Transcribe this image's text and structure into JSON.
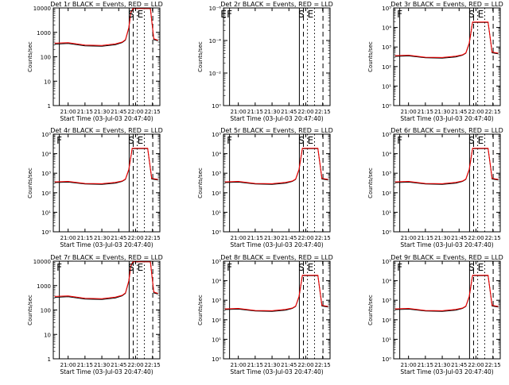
{
  "figure": {
    "x_tick_labels": [
      "21:00",
      "21:15",
      "21:30",
      "21:45",
      "22:00",
      "22:15"
    ],
    "xlabel": "Start Time (03-Jul-03 20:47:40)",
    "ylabel": "Counts/sec",
    "series_colors": {
      "events": "#000000",
      "lld": "#ff0000"
    },
    "markers": [
      "F",
      "S",
      "E"
    ]
  },
  "chart_data": [
    {
      "type": "line",
      "title": "Det 1r BLACK = Events, RED = LLD",
      "xlabel": "Start Time (03-Jul-03 20:47:40)",
      "ylabel": "Counts/sec",
      "x_ticks": [
        "21:00",
        "21:15",
        "21:30",
        "21:45",
        "22:00",
        "22:15"
      ],
      "y_ticks": [
        "1",
        "10",
        "100",
        "1000",
        "10000"
      ],
      "ylim": [
        1,
        10000
      ],
      "log_y": true,
      "series": [
        {
          "color": "#000000",
          "x": [
            20.8,
            21.0,
            21.25,
            21.5,
            21.7,
            21.8,
            21.85,
            21.9,
            21.93,
            21.96,
            22.05,
            22.22,
            22.27,
            22.33
          ],
          "y": [
            330,
            350,
            280,
            270,
            310,
            380,
            480,
            1500,
            6000,
            9500,
            9500,
            9500,
            500,
            450
          ]
        },
        {
          "color": "#ff0000",
          "x": [
            20.8,
            21.0,
            21.25,
            21.5,
            21.7,
            21.8,
            21.85,
            21.9,
            21.93,
            21.96,
            22.05,
            22.22,
            22.27,
            22.33
          ],
          "y": [
            360,
            380,
            300,
            290,
            340,
            400,
            500,
            1600,
            6500,
            9500,
            9500,
            9500,
            550,
            480
          ]
        }
      ],
      "markers": [
        {
          "label": "S",
          "x": 21.935
        },
        {
          "label": "E",
          "x": 22.07
        }
      ]
    },
    {
      "type": "line",
      "title": "Det 2r BLACK = Events, RED = LLD",
      "xlabel": "Start Time (03-Jul-03 20:47:40)",
      "ylabel": "Counts/sec",
      "x_ticks": [
        "21:00",
        "21:15",
        "21:30",
        "21:45",
        "22:00",
        "22:15"
      ],
      "y_ticks": [
        "10⁰",
        "10⁻²",
        "10⁻⁴",
        "10⁻⁶"
      ],
      "ylim": [
        1,
        1e-06
      ],
      "log_y": true,
      "series": [],
      "markers": [
        {
          "label": "E",
          "x": 20.78
        },
        {
          "label": "F",
          "x": 20.87
        },
        {
          "label": "S",
          "x": 21.935
        },
        {
          "label": "E",
          "x": 22.07
        }
      ]
    },
    {
      "type": "line",
      "title": "Det 3r BLACK = Events, RED = LLD",
      "xlabel": "Start Time (03-Jul-03 20:47:40)",
      "ylabel": "Counts/sec",
      "x_ticks": [
        "21:00",
        "21:15",
        "21:30",
        "21:45",
        "22:00",
        "22:15"
      ],
      "y_ticks": [
        "10⁰",
        "10¹",
        "10²",
        "10³",
        "10⁴",
        "10⁵"
      ],
      "ylim": [
        1,
        100000
      ],
      "log_y": true,
      "series": [
        {
          "color": "#000000",
          "x": [
            20.8,
            21.0,
            21.25,
            21.5,
            21.7,
            21.8,
            21.85,
            21.9,
            21.95,
            22.02,
            22.18,
            22.24,
            22.33
          ],
          "y": [
            330,
            350,
            280,
            270,
            310,
            380,
            480,
            1500,
            18000,
            18000,
            18000,
            500,
            450
          ]
        },
        {
          "color": "#ff0000",
          "x": [
            20.8,
            21.0,
            21.25,
            21.5,
            21.7,
            21.8,
            21.85,
            21.9,
            21.95,
            22.02,
            22.18,
            22.24,
            22.33
          ],
          "y": [
            360,
            380,
            300,
            290,
            340,
            400,
            500,
            1600,
            19000,
            19000,
            19000,
            550,
            480
          ]
        }
      ],
      "markers": [
        {
          "label": "F",
          "x": 20.87
        },
        {
          "label": "S",
          "x": 21.935
        },
        {
          "label": "E",
          "x": 22.07
        }
      ]
    },
    {
      "type": "line",
      "title": "Det 4r BLACK = Events, RED = LLD",
      "xlabel": "Start Time (03-Jul-03 20:47:40)",
      "ylabel": "Counts/sec",
      "x_ticks": [
        "21:00",
        "21:15",
        "21:30",
        "21:45",
        "22:00",
        "22:15"
      ],
      "y_ticks": [
        "10⁰",
        "10¹",
        "10²",
        "10³",
        "10⁴",
        "10⁵"
      ],
      "ylim": [
        1,
        100000
      ],
      "log_y": true,
      "series": [
        {
          "color": "#000000",
          "x": [
            20.8,
            21.0,
            21.25,
            21.5,
            21.7,
            21.8,
            21.85,
            21.9,
            21.95,
            22.02,
            22.18,
            22.24,
            22.33
          ],
          "y": [
            330,
            350,
            280,
            270,
            310,
            380,
            480,
            1500,
            18000,
            18000,
            18000,
            500,
            450
          ]
        },
        {
          "color": "#ff0000",
          "x": [
            20.8,
            21.0,
            21.25,
            21.5,
            21.7,
            21.8,
            21.85,
            21.9,
            21.95,
            22.02,
            22.18,
            22.24,
            22.33
          ],
          "y": [
            360,
            380,
            300,
            290,
            340,
            400,
            500,
            1600,
            19000,
            19000,
            19000,
            550,
            480
          ]
        }
      ],
      "markers": [
        {
          "label": "F",
          "x": 20.87
        },
        {
          "label": "S",
          "x": 21.935
        },
        {
          "label": "E",
          "x": 22.07
        }
      ]
    },
    {
      "type": "line",
      "title": "Det 5r BLACK = Events, RED = LLD",
      "xlabel": "Start Time (03-Jul-03 20:47:40)",
      "ylabel": "Counts/sec",
      "x_ticks": [
        "21:00",
        "21:15",
        "21:30",
        "21:45",
        "22:00",
        "22:15"
      ],
      "y_ticks": [
        "10⁰",
        "10¹",
        "10²",
        "10³",
        "10⁴",
        "10⁵"
      ],
      "ylim": [
        1,
        100000
      ],
      "log_y": true,
      "series": [
        {
          "color": "#000000",
          "x": [
            20.8,
            21.0,
            21.25,
            21.5,
            21.7,
            21.8,
            21.85,
            21.9,
            21.95,
            22.02,
            22.18,
            22.24,
            22.33
          ],
          "y": [
            330,
            350,
            280,
            270,
            310,
            380,
            480,
            1500,
            18000,
            18000,
            18000,
            500,
            450
          ]
        },
        {
          "color": "#ff0000",
          "x": [
            20.8,
            21.0,
            21.25,
            21.5,
            21.7,
            21.8,
            21.85,
            21.9,
            21.95,
            22.02,
            22.18,
            22.24,
            22.33
          ],
          "y": [
            360,
            380,
            300,
            290,
            340,
            400,
            500,
            1600,
            19000,
            19000,
            19000,
            550,
            480
          ]
        }
      ],
      "markers": [
        {
          "label": "F",
          "x": 20.87
        },
        {
          "label": "S",
          "x": 21.935
        },
        {
          "label": "E",
          "x": 22.07
        }
      ]
    },
    {
      "type": "line",
      "title": "Det 6r BLACK = Events, RED = LLD",
      "xlabel": "Start Time (03-Jul-03 20:47:40)",
      "ylabel": "Counts/sec",
      "x_ticks": [
        "21:00",
        "21:15",
        "21:30",
        "21:45",
        "22:00",
        "22:15"
      ],
      "y_ticks": [
        "10⁰",
        "10¹",
        "10²",
        "10³",
        "10⁴",
        "10⁵"
      ],
      "ylim": [
        1,
        100000
      ],
      "log_y": true,
      "series": [
        {
          "color": "#000000",
          "x": [
            20.8,
            21.0,
            21.25,
            21.5,
            21.7,
            21.8,
            21.85,
            21.9,
            21.95,
            22.02,
            22.18,
            22.24,
            22.33
          ],
          "y": [
            330,
            350,
            280,
            270,
            310,
            380,
            480,
            1500,
            18000,
            18000,
            18000,
            500,
            450
          ]
        },
        {
          "color": "#ff0000",
          "x": [
            20.8,
            21.0,
            21.25,
            21.5,
            21.7,
            21.8,
            21.85,
            21.9,
            21.95,
            22.02,
            22.18,
            22.24,
            22.33
          ],
          "y": [
            360,
            380,
            300,
            290,
            340,
            400,
            500,
            1600,
            19000,
            19000,
            19000,
            550,
            480
          ]
        }
      ],
      "markers": [
        {
          "label": "F",
          "x": 20.87
        },
        {
          "label": "S",
          "x": 21.935
        },
        {
          "label": "E",
          "x": 22.07
        }
      ]
    },
    {
      "type": "line",
      "title": "Det 7r BLACK = Events, RED = LLD",
      "xlabel": "Start Time (03-Jul-03 20:47:40)",
      "ylabel": "Counts/sec",
      "x_ticks": [
        "21:00",
        "21:15",
        "21:30",
        "21:45",
        "22:00",
        "22:15"
      ],
      "y_ticks": [
        "1",
        "10",
        "100",
        "1000",
        "10000"
      ],
      "ylim": [
        1,
        10000
      ],
      "log_y": true,
      "series": [
        {
          "color": "#000000",
          "x": [
            20.8,
            21.0,
            21.25,
            21.5,
            21.7,
            21.8,
            21.85,
            21.9,
            21.93,
            21.96,
            22.05,
            22.22,
            22.27,
            22.33
          ],
          "y": [
            330,
            350,
            280,
            270,
            310,
            380,
            480,
            1500,
            6000,
            9500,
            9500,
            9500,
            500,
            450
          ]
        },
        {
          "color": "#ff0000",
          "x": [
            20.8,
            21.0,
            21.25,
            21.5,
            21.7,
            21.8,
            21.85,
            21.9,
            21.93,
            21.96,
            22.05,
            22.22,
            22.27,
            22.33
          ],
          "y": [
            360,
            380,
            300,
            290,
            340,
            400,
            500,
            1600,
            6500,
            9500,
            9500,
            9500,
            550,
            480
          ]
        }
      ],
      "markers": [
        {
          "label": "F",
          "x": 20.87
        },
        {
          "label": "S",
          "x": 21.935
        },
        {
          "label": "E",
          "x": 22.07
        }
      ]
    },
    {
      "type": "line",
      "title": "Det 8r BLACK = Events, RED = LLD",
      "xlabel": "Start Time (03-Jul-03 20:47:40)",
      "ylabel": "Counts/sec",
      "x_ticks": [
        "21:00",
        "21:15",
        "21:30",
        "21:45",
        "22:00",
        "22:15"
      ],
      "y_ticks": [
        "10⁰",
        "10¹",
        "10²",
        "10³",
        "10⁴",
        "10⁵"
      ],
      "ylim": [
        1,
        100000
      ],
      "log_y": true,
      "series": [
        {
          "color": "#000000",
          "x": [
            20.8,
            21.0,
            21.25,
            21.5,
            21.7,
            21.8,
            21.85,
            21.9,
            21.95,
            22.02,
            22.18,
            22.24,
            22.33
          ],
          "y": [
            330,
            350,
            280,
            270,
            310,
            380,
            480,
            1500,
            18000,
            18000,
            18000,
            500,
            450
          ]
        },
        {
          "color": "#ff0000",
          "x": [
            20.8,
            21.0,
            21.25,
            21.5,
            21.7,
            21.8,
            21.85,
            21.9,
            21.95,
            22.02,
            22.18,
            22.24,
            22.33
          ],
          "y": [
            360,
            380,
            300,
            290,
            340,
            400,
            500,
            1600,
            19000,
            19000,
            19000,
            550,
            480
          ]
        }
      ],
      "markers": [
        {
          "label": "F",
          "x": 20.87
        },
        {
          "label": "S",
          "x": 21.935
        },
        {
          "label": "E",
          "x": 22.07
        }
      ]
    },
    {
      "type": "line",
      "title": "Det 9r BLACK = Events, RED = LLD",
      "xlabel": "Start Time (03-Jul-03 20:47:40)",
      "ylabel": "Counts/sec",
      "x_ticks": [
        "21:00",
        "21:15",
        "21:30",
        "21:45",
        "22:00",
        "22:15"
      ],
      "y_ticks": [
        "10⁰",
        "10¹",
        "10²",
        "10³",
        "10⁴",
        "10⁵"
      ],
      "ylim": [
        1,
        100000
      ],
      "log_y": true,
      "series": [
        {
          "color": "#000000",
          "x": [
            20.8,
            21.0,
            21.25,
            21.5,
            21.7,
            21.8,
            21.85,
            21.9,
            21.95,
            22.02,
            22.18,
            22.24,
            22.33
          ],
          "y": [
            330,
            350,
            280,
            270,
            310,
            380,
            480,
            1500,
            18000,
            18000,
            18000,
            500,
            450
          ]
        },
        {
          "color": "#ff0000",
          "x": [
            20.8,
            21.0,
            21.25,
            21.5,
            21.7,
            21.8,
            21.85,
            21.9,
            21.95,
            22.02,
            22.18,
            22.24,
            22.33
          ],
          "y": [
            360,
            380,
            300,
            290,
            340,
            400,
            500,
            1600,
            19000,
            19000,
            19000,
            550,
            480
          ]
        }
      ],
      "markers": [
        {
          "label": "F",
          "x": 20.87
        },
        {
          "label": "S",
          "x": 21.935
        },
        {
          "label": "E",
          "x": 22.07
        }
      ]
    }
  ]
}
